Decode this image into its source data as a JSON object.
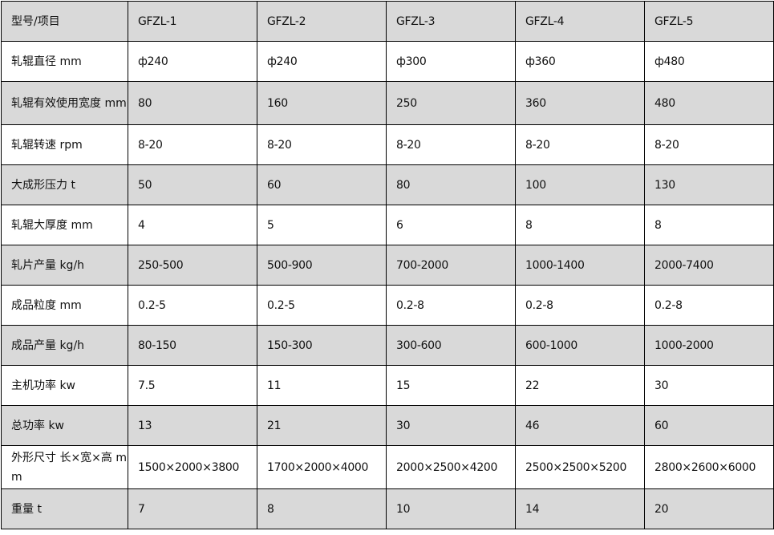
{
  "table": {
    "header": [
      "型号/项目",
      "GFZL-1",
      "GFZL-2",
      "GFZL-3",
      "GFZL-4",
      "GFZL-5"
    ],
    "rows": [
      [
        "轧辊直径 mm",
        "ф240",
        "ф240",
        "ф300",
        "ф360",
        "ф480"
      ],
      [
        "轧辊有效使用宽度 mm",
        "80",
        "160",
        "250",
        "360",
        "480"
      ],
      [
        "轧辊转速 rpm",
        "8-20",
        "8-20",
        "8-20",
        "8-20",
        "8-20"
      ],
      [
        "大成形压力 t",
        "50",
        "60",
        "80",
        "100",
        "130"
      ],
      [
        "轧辊大厚度 mm",
        "4",
        "5",
        "6",
        "8",
        "8"
      ],
      [
        "轧片产量 kg/h",
        "250-500",
        "500-900",
        "700-2000",
        "1000-1400",
        "2000-7400"
      ],
      [
        "成品粒度 mm",
        "0.2-5",
        "0.2-5",
        "0.2-8",
        "0.2-8",
        "0.2-8"
      ],
      [
        "成品产量 kg/h",
        "80-150",
        "150-300",
        "300-600",
        "600-1000",
        "1000-2000"
      ],
      [
        "主机功率 kw",
        "7.5",
        "11",
        "15",
        "22",
        "30"
      ],
      [
        "总功率 kw",
        "13",
        "21",
        "30",
        "46",
        "60"
      ],
      [
        "外形尺寸 长×宽×高 mm",
        "1500×2000×3800",
        "1700×2000×4000",
        "2000×2500×4200",
        "2500×2500×5200",
        "2800×2600×6000"
      ],
      [
        "重量 t",
        "7",
        "8",
        "10",
        "14",
        "20"
      ]
    ]
  }
}
